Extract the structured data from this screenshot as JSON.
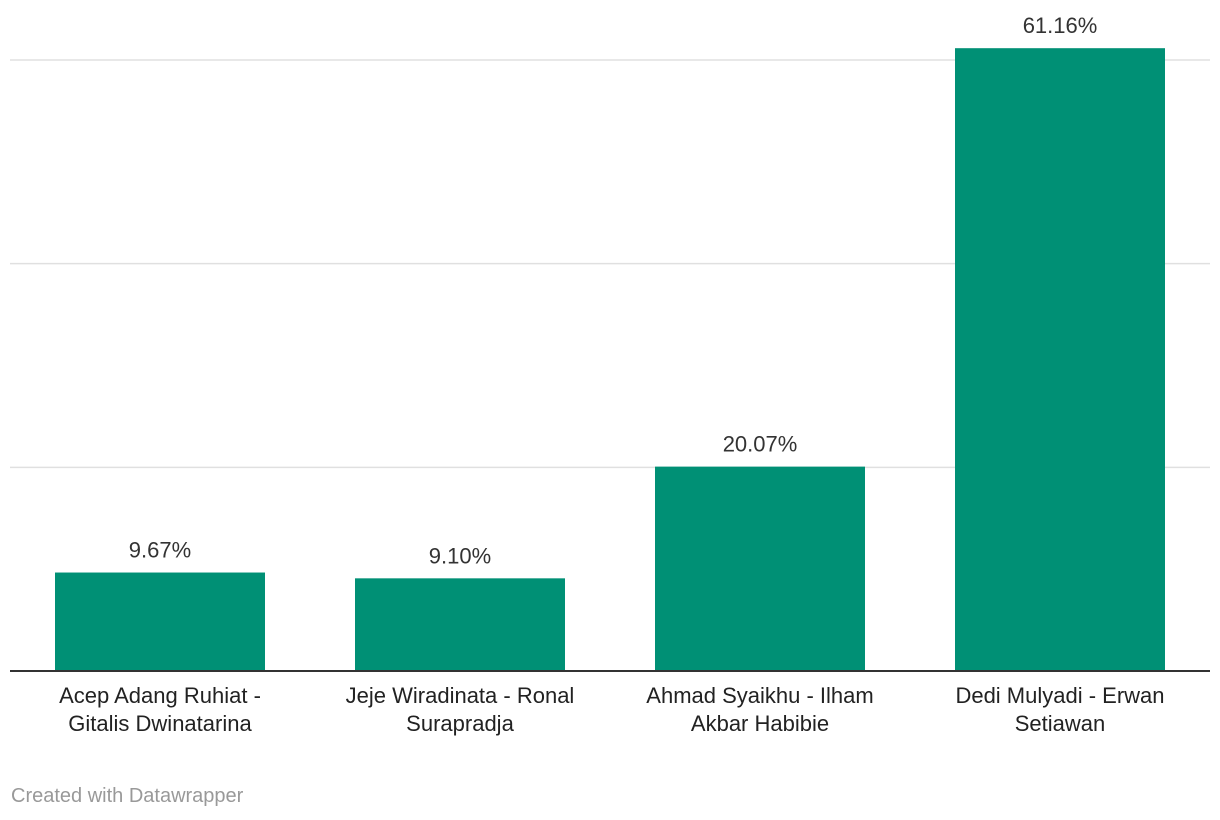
{
  "chart_data": {
    "type": "bar",
    "categories": [
      [
        "Acep Adang Ruhiat -",
        "Gitalis Dwinatarina"
      ],
      [
        "Jeje Wiradinata - Ronal",
        "Surapradja"
      ],
      [
        "Ahmad Syaikhu - Ilham",
        "Akbar Habibie"
      ],
      [
        "Dedi Mulyadi - Erwan",
        "Setiawan"
      ]
    ],
    "values": [
      9.67,
      9.1,
      20.07,
      61.16
    ],
    "value_labels": [
      "9.67%",
      "9.10%",
      "20.07%",
      "61.16%"
    ],
    "ylim": [
      0,
      60
    ],
    "gridlines": [
      20,
      40,
      60
    ],
    "grid": true,
    "bar_color": "#009075",
    "gridline_color": "#e0e0e0",
    "baseline_color": "#333333"
  },
  "footer": {
    "credit": "Created with Datawrapper"
  }
}
